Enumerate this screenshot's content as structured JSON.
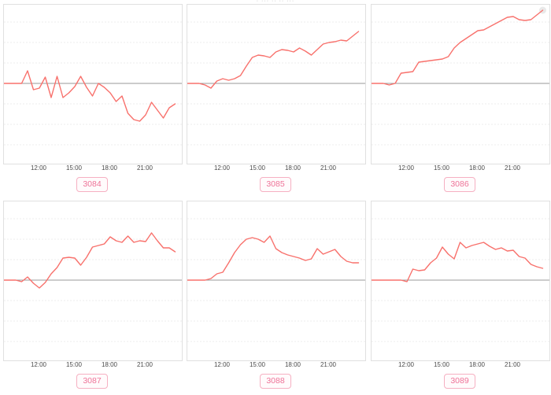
{
  "header": {
    "clipped_text": "· ··· ·· ·· ···"
  },
  "axis": {
    "ticks": [
      "12:00",
      "15:00",
      "18:00",
      "21:00"
    ]
  },
  "colors": {
    "line": "#f8716c",
    "zero_line": "#9a9a9a",
    "grid_line": "#ececec",
    "box_border": "#e0e0e0",
    "tick_text": "#4a4a4a",
    "badge_text": "#ee7398",
    "badge_border": "#f6b0c2",
    "end_marker": "#e9e9e9"
  },
  "chart_data": [
    {
      "type": "line",
      "label": "3084",
      "x_start_hour": 9,
      "x_step_hours": 0.5,
      "x_tick_hours": [
        12,
        15,
        18,
        21
      ],
      "x_tick_labels": [
        "12:00",
        "15:00",
        "18:00",
        "21:00"
      ],
      "baseline": 0,
      "ylim": [
        -100,
        100
      ],
      "end_marker": false,
      "values": [
        0,
        0,
        0,
        0,
        16,
        -8,
        -6,
        8,
        -18,
        9,
        -18,
        -12,
        -4,
        9,
        -5,
        -16,
        0,
        -5,
        -12,
        -23,
        -16,
        -38,
        -46,
        -48,
        -40,
        -24,
        -34,
        -44,
        -31,
        -26
      ]
    },
    {
      "type": "line",
      "label": "3085",
      "x_start_hour": 9,
      "x_step_hours": 0.5,
      "x_tick_hours": [
        12,
        15,
        18,
        21
      ],
      "x_tick_labels": [
        "12:00",
        "15:00",
        "18:00",
        "21:00"
      ],
      "baseline": 0,
      "ylim": [
        -100,
        100
      ],
      "end_marker": false,
      "values": [
        0,
        0,
        0,
        -2,
        -6,
        3,
        6,
        4,
        6,
        10,
        22,
        33,
        36,
        35,
        33,
        40,
        43,
        42,
        40,
        45,
        41,
        36,
        43,
        50,
        52,
        53,
        55,
        54,
        60,
        66
      ]
    },
    {
      "type": "line",
      "label": "3086",
      "x_start_hour": 9,
      "x_step_hours": 0.5,
      "x_tick_hours": [
        12,
        15,
        18,
        21
      ],
      "x_tick_labels": [
        "12:00",
        "15:00",
        "18:00",
        "21:00"
      ],
      "baseline": 0,
      "ylim": [
        -100,
        100
      ],
      "end_marker": true,
      "values": [
        0,
        0,
        0,
        -2,
        0,
        13,
        14,
        15,
        27,
        28,
        29,
        30,
        31,
        34,
        45,
        52,
        57,
        62,
        67,
        68,
        72,
        76,
        80,
        84,
        85,
        81,
        80,
        81,
        87,
        93
      ]
    },
    {
      "type": "line",
      "label": "3087",
      "x_start_hour": 9,
      "x_step_hours": 0.5,
      "x_tick_hours": [
        12,
        15,
        18,
        21
      ],
      "x_tick_labels": [
        "12:00",
        "15:00",
        "18:00",
        "21:00"
      ],
      "baseline": 0,
      "ylim": [
        -100,
        100
      ],
      "end_marker": false,
      "values": [
        0,
        0,
        0,
        -2,
        4,
        -4,
        -10,
        -3,
        8,
        16,
        28,
        29,
        28,
        19,
        29,
        42,
        44,
        46,
        55,
        50,
        48,
        56,
        48,
        50,
        49,
        60,
        50,
        41,
        41,
        36
      ]
    },
    {
      "type": "line",
      "label": "3088",
      "x_start_hour": 9,
      "x_step_hours": 0.5,
      "x_tick_hours": [
        12,
        15,
        18,
        21
      ],
      "x_tick_labels": [
        "12:00",
        "15:00",
        "18:00",
        "21:00"
      ],
      "baseline": 0,
      "ylim": [
        -100,
        100
      ],
      "end_marker": false,
      "values": [
        0,
        0,
        0,
        0,
        2,
        8,
        10,
        22,
        35,
        45,
        52,
        54,
        52,
        48,
        56,
        40,
        35,
        32,
        30,
        28,
        25,
        27,
        40,
        33,
        36,
        39,
        30,
        24,
        22,
        22
      ]
    },
    {
      "type": "line",
      "label": "3089",
      "x_start_hour": 9,
      "x_step_hours": 0.5,
      "x_tick_hours": [
        12,
        15,
        18,
        21
      ],
      "x_tick_labels": [
        "12:00",
        "15:00",
        "18:00",
        "21:00"
      ],
      "baseline": 0,
      "ylim": [
        -100,
        100
      ],
      "end_marker": false,
      "values": [
        0,
        0,
        0,
        0,
        0,
        0,
        -2,
        14,
        12,
        13,
        22,
        28,
        42,
        33,
        27,
        48,
        41,
        44,
        46,
        48,
        43,
        39,
        41,
        37,
        38,
        30,
        28,
        20,
        17,
        15
      ]
    }
  ]
}
